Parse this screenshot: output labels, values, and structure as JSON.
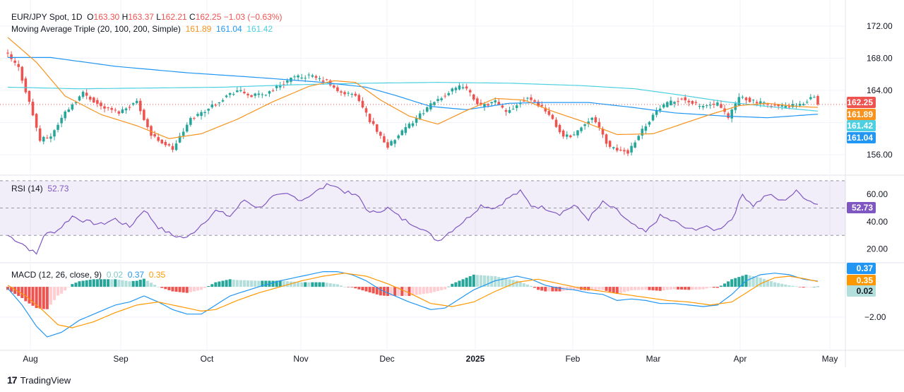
{
  "header": {
    "symbol": "EUR/JPY Spot, 1D",
    "open_label": "O",
    "open": "163.30",
    "high_label": "H",
    "high": "163.37",
    "low_label": "L",
    "low": "162.21",
    "close_label": "C",
    "close": "162.25",
    "change": "−1.03 (−0.63%)"
  },
  "ma_legend": {
    "title": "Moving Average Triple (20, 100, 200, Simple)",
    "ma20": "161.89",
    "ma100": "161.04",
    "ma200": "161.42"
  },
  "rsi_legend": {
    "title": "RSI (14)",
    "value": "52.73"
  },
  "macd_legend": {
    "title": "MACD (12, 26, close, 9)",
    "hist": "0.02",
    "macd": "0.37",
    "signal": "0.35"
  },
  "brand": {
    "name": "TradingView"
  },
  "colors": {
    "up": "#26a69a",
    "down": "#ef5350",
    "ma20": "#f7931e",
    "ma100": "#2196f3",
    "ma200": "#4dd0e1",
    "rsi": "#7e57c2",
    "macd": "#2196f3",
    "signal": "#ff9800",
    "hist_up_strong": "#26a69a",
    "hist_up_weak": "#b2dfdb",
    "hist_dn_strong": "#ef5350",
    "hist_dn_weak": "#ffcdd2"
  },
  "chart_data": [
    {
      "type": "candlestick",
      "title": "EUR/JPY Spot, 1D",
      "x_ticks": [
        "Aug",
        "Sep",
        "Oct",
        "Nov",
        "Dec",
        "2025",
        "Feb",
        "Mar",
        "Apr",
        "May"
      ],
      "y_ticks": [
        156.0,
        160.0,
        164.0,
        168.0,
        172.0
      ],
      "y_tick_labels": [
        "156.00",
        "164.00",
        "168.00",
        "172.00"
      ],
      "ylim": [
        154.5,
        173.5
      ],
      "close_keypoints": [
        {
          "i": 0,
          "v": 168.4
        },
        {
          "i": 3,
          "v": 166.8
        },
        {
          "i": 6,
          "v": 162.5
        },
        {
          "i": 9,
          "v": 157.8
        },
        {
          "i": 12,
          "v": 158.3
        },
        {
          "i": 16,
          "v": 161.3
        },
        {
          "i": 21,
          "v": 163.7
        },
        {
          "i": 26,
          "v": 162.0
        },
        {
          "i": 31,
          "v": 161.3
        },
        {
          "i": 36,
          "v": 162.6
        },
        {
          "i": 40,
          "v": 158.4
        },
        {
          "i": 46,
          "v": 156.7
        },
        {
          "i": 51,
          "v": 160.4
        },
        {
          "i": 56,
          "v": 161.8
        },
        {
          "i": 61,
          "v": 163.3
        },
        {
          "i": 64,
          "v": 164.0
        },
        {
          "i": 68,
          "v": 163.3
        },
        {
          "i": 72,
          "v": 163.6
        },
        {
          "i": 75,
          "v": 164.4
        },
        {
          "i": 79,
          "v": 165.5
        },
        {
          "i": 84,
          "v": 165.8
        },
        {
          "i": 89,
          "v": 165.1
        },
        {
          "i": 92,
          "v": 163.8
        },
        {
          "i": 97,
          "v": 163.4
        },
        {
          "i": 101,
          "v": 160.3
        },
        {
          "i": 106,
          "v": 157.0
        },
        {
          "i": 110,
          "v": 158.8
        },
        {
          "i": 115,
          "v": 161.0
        },
        {
          "i": 120,
          "v": 162.9
        },
        {
          "i": 124,
          "v": 164.0
        },
        {
          "i": 127,
          "v": 164.6
        },
        {
          "i": 132,
          "v": 162.0
        },
        {
          "i": 136,
          "v": 162.6
        },
        {
          "i": 139,
          "v": 161.2
        },
        {
          "i": 145,
          "v": 163.2
        },
        {
          "i": 150,
          "v": 161.6
        },
        {
          "i": 155,
          "v": 158.2
        },
        {
          "i": 158,
          "v": 158.5
        },
        {
          "i": 163,
          "v": 160.8
        },
        {
          "i": 168,
          "v": 156.8
        },
        {
          "i": 173,
          "v": 156.3
        },
        {
          "i": 176,
          "v": 158.5
        },
        {
          "i": 181,
          "v": 161.5
        },
        {
          "i": 184,
          "v": 162.3
        },
        {
          "i": 188,
          "v": 163.0
        },
        {
          "i": 193,
          "v": 162.0
        },
        {
          "i": 198,
          "v": 162.3
        },
        {
          "i": 201,
          "v": 160.5
        },
        {
          "i": 204,
          "v": 163.2
        },
        {
          "i": 210,
          "v": 162.4
        },
        {
          "i": 215,
          "v": 162.0
        },
        {
          "i": 221,
          "v": 162.1
        },
        {
          "i": 224,
          "v": 163.1
        },
        {
          "i": 225,
          "v": 163.3
        },
        {
          "i": 226,
          "v": 162.25
        }
      ],
      "ma20_keypoints": [
        {
          "i": 0,
          "v": 170.6
        },
        {
          "i": 8,
          "v": 167.5
        },
        {
          "i": 16,
          "v": 163.3
        },
        {
          "i": 26,
          "v": 161.0
        },
        {
          "i": 36,
          "v": 159.6
        },
        {
          "i": 45,
          "v": 158.0
        },
        {
          "i": 54,
          "v": 158.6
        },
        {
          "i": 64,
          "v": 160.4
        },
        {
          "i": 74,
          "v": 162.6
        },
        {
          "i": 84,
          "v": 164.5
        },
        {
          "i": 91,
          "v": 165.2
        },
        {
          "i": 97,
          "v": 165.0
        },
        {
          "i": 104,
          "v": 162.8
        },
        {
          "i": 112,
          "v": 160.8
        },
        {
          "i": 120,
          "v": 159.8
        },
        {
          "i": 128,
          "v": 161.5
        },
        {
          "i": 136,
          "v": 163.0
        },
        {
          "i": 144,
          "v": 162.8
        },
        {
          "i": 152,
          "v": 161.4
        },
        {
          "i": 160,
          "v": 160.2
        },
        {
          "i": 170,
          "v": 158.5
        },
        {
          "i": 180,
          "v": 158.6
        },
        {
          "i": 188,
          "v": 159.8
        },
        {
          "i": 196,
          "v": 161.0
        },
        {
          "i": 204,
          "v": 162.1
        },
        {
          "i": 212,
          "v": 162.4
        },
        {
          "i": 220,
          "v": 162.0
        },
        {
          "i": 226,
          "v": 161.89
        }
      ],
      "ma100_keypoints": [
        {
          "i": 0,
          "v": 168.1
        },
        {
          "i": 12,
          "v": 168.1
        },
        {
          "i": 30,
          "v": 167.0
        },
        {
          "i": 50,
          "v": 166.2
        },
        {
          "i": 70,
          "v": 165.6
        },
        {
          "i": 88,
          "v": 165.0
        },
        {
          "i": 100,
          "v": 164.4
        },
        {
          "i": 108,
          "v": 163.4
        },
        {
          "i": 118,
          "v": 162.0
        },
        {
          "i": 128,
          "v": 161.6
        },
        {
          "i": 140,
          "v": 162.4
        },
        {
          "i": 150,
          "v": 162.5
        },
        {
          "i": 162,
          "v": 162.5
        },
        {
          "i": 174,
          "v": 161.9
        },
        {
          "i": 186,
          "v": 161.2
        },
        {
          "i": 200,
          "v": 160.8
        },
        {
          "i": 212,
          "v": 160.6
        },
        {
          "i": 226,
          "v": 161.04
        }
      ],
      "ma200_keypoints": [
        {
          "i": 0,
          "v": 164.4
        },
        {
          "i": 20,
          "v": 164.2
        },
        {
          "i": 40,
          "v": 164.3
        },
        {
          "i": 60,
          "v": 164.4
        },
        {
          "i": 80,
          "v": 164.7
        },
        {
          "i": 100,
          "v": 164.9
        },
        {
          "i": 120,
          "v": 165.0
        },
        {
          "i": 140,
          "v": 164.9
        },
        {
          "i": 160,
          "v": 164.6
        },
        {
          "i": 175,
          "v": 164.2
        },
        {
          "i": 188,
          "v": 163.4
        },
        {
          "i": 200,
          "v": 162.6
        },
        {
          "i": 212,
          "v": 162.0
        },
        {
          "i": 226,
          "v": 161.42
        }
      ],
      "price_labels": [
        {
          "value": "162.25",
          "color": "#ef5350"
        },
        {
          "value": "161.89",
          "color": "#f7931e"
        },
        {
          "value": "161.42",
          "color": "#4dd0e1"
        },
        {
          "value": "161.04",
          "color": "#2196f3"
        }
      ],
      "last_price": 162.25
    },
    {
      "type": "line",
      "title": "RSI (14)",
      "y_ticks": [
        20,
        40,
        60
      ],
      "y_tick_labels": [
        "20.00",
        "40.00",
        "60.00"
      ],
      "ylim": [
        12,
        72
      ],
      "band": [
        30,
        70
      ],
      "midline": 50,
      "keypoints": [
        {
          "i": 0,
          "v": 30
        },
        {
          "i": 4,
          "v": 24
        },
        {
          "i": 8,
          "v": 16
        },
        {
          "i": 10,
          "v": 30
        },
        {
          "i": 14,
          "v": 34
        },
        {
          "i": 18,
          "v": 44
        },
        {
          "i": 22,
          "v": 40
        },
        {
          "i": 26,
          "v": 38
        },
        {
          "i": 30,
          "v": 42
        },
        {
          "i": 34,
          "v": 36
        },
        {
          "i": 38,
          "v": 49
        },
        {
          "i": 42,
          "v": 36
        },
        {
          "i": 46,
          "v": 30
        },
        {
          "i": 50,
          "v": 28
        },
        {
          "i": 54,
          "v": 38
        },
        {
          "i": 58,
          "v": 48
        },
        {
          "i": 62,
          "v": 44
        },
        {
          "i": 66,
          "v": 56
        },
        {
          "i": 70,
          "v": 50
        },
        {
          "i": 74,
          "v": 58
        },
        {
          "i": 78,
          "v": 60
        },
        {
          "i": 82,
          "v": 56
        },
        {
          "i": 86,
          "v": 62
        },
        {
          "i": 90,
          "v": 68
        },
        {
          "i": 94,
          "v": 62
        },
        {
          "i": 98,
          "v": 58
        },
        {
          "i": 101,
          "v": 46
        },
        {
          "i": 106,
          "v": 50
        },
        {
          "i": 110,
          "v": 42
        },
        {
          "i": 115,
          "v": 36
        },
        {
          "i": 120,
          "v": 26
        },
        {
          "i": 124,
          "v": 34
        },
        {
          "i": 128,
          "v": 42
        },
        {
          "i": 132,
          "v": 52
        },
        {
          "i": 136,
          "v": 50
        },
        {
          "i": 140,
          "v": 58
        },
        {
          "i": 143,
          "v": 62
        },
        {
          "i": 146,
          "v": 52
        },
        {
          "i": 150,
          "v": 50
        },
        {
          "i": 154,
          "v": 46
        },
        {
          "i": 158,
          "v": 52
        },
        {
          "i": 162,
          "v": 42
        },
        {
          "i": 166,
          "v": 54
        },
        {
          "i": 170,
          "v": 48
        },
        {
          "i": 174,
          "v": 38
        },
        {
          "i": 178,
          "v": 32
        },
        {
          "i": 182,
          "v": 44
        },
        {
          "i": 186,
          "v": 40
        },
        {
          "i": 190,
          "v": 34
        },
        {
          "i": 194,
          "v": 36
        },
        {
          "i": 198,
          "v": 34
        },
        {
          "i": 202,
          "v": 42
        },
        {
          "i": 205,
          "v": 60
        },
        {
          "i": 208,
          "v": 52
        },
        {
          "i": 212,
          "v": 60
        },
        {
          "i": 216,
          "v": 55
        },
        {
          "i": 220,
          "v": 62
        },
        {
          "i": 224,
          "v": 55
        },
        {
          "i": 226,
          "v": 52.73
        }
      ],
      "last_value_label": "52.73"
    },
    {
      "type": "macd",
      "title": "MACD (12, 26, close, 9)",
      "y_ticks": [
        -2.0
      ],
      "y_tick_labels": [
        "−2.00"
      ],
      "ylim": [
        -4.0,
        1.4
      ],
      "macd_keypoints": [
        {
          "i": 0,
          "v": -0.1
        },
        {
          "i": 4,
          "v": -1.2
        },
        {
          "i": 8,
          "v": -2.6
        },
        {
          "i": 11,
          "v": -3.3
        },
        {
          "i": 15,
          "v": -3.0
        },
        {
          "i": 20,
          "v": -2.2
        },
        {
          "i": 26,
          "v": -1.6
        },
        {
          "i": 30,
          "v": -1.2
        },
        {
          "i": 34,
          "v": -1.0
        },
        {
          "i": 38,
          "v": -0.6
        },
        {
          "i": 42,
          "v": -1.0
        },
        {
          "i": 46,
          "v": -1.5
        },
        {
          "i": 50,
          "v": -1.8
        },
        {
          "i": 54,
          "v": -1.8
        },
        {
          "i": 58,
          "v": -1.2
        },
        {
          "i": 62,
          "v": -0.6
        },
        {
          "i": 66,
          "v": -0.3
        },
        {
          "i": 70,
          "v": 0.0
        },
        {
          "i": 76,
          "v": 0.4
        },
        {
          "i": 82,
          "v": 0.7
        },
        {
          "i": 88,
          "v": 1.0
        },
        {
          "i": 92,
          "v": 1.0
        },
        {
          "i": 96,
          "v": 0.8
        },
        {
          "i": 100,
          "v": 0.4
        },
        {
          "i": 104,
          "v": -0.2
        },
        {
          "i": 108,
          "v": -0.6
        },
        {
          "i": 112,
          "v": -1.0
        },
        {
          "i": 118,
          "v": -1.5
        },
        {
          "i": 122,
          "v": -1.4
        },
        {
          "i": 126,
          "v": -0.8
        },
        {
          "i": 130,
          "v": -0.2
        },
        {
          "i": 136,
          "v": 0.4
        },
        {
          "i": 142,
          "v": 0.7
        },
        {
          "i": 146,
          "v": 0.5
        },
        {
          "i": 150,
          "v": 0.1
        },
        {
          "i": 154,
          "v": -0.1
        },
        {
          "i": 158,
          "v": -0.2
        },
        {
          "i": 162,
          "v": -0.4
        },
        {
          "i": 166,
          "v": -0.5
        },
        {
          "i": 170,
          "v": -0.9
        },
        {
          "i": 174,
          "v": -0.8
        },
        {
          "i": 178,
          "v": -0.9
        },
        {
          "i": 182,
          "v": -1.1
        },
        {
          "i": 186,
          "v": -1.1
        },
        {
          "i": 190,
          "v": -1.2
        },
        {
          "i": 194,
          "v": -1.3
        },
        {
          "i": 198,
          "v": -1.2
        },
        {
          "i": 202,
          "v": -0.5
        },
        {
          "i": 206,
          "v": 0.4
        },
        {
          "i": 210,
          "v": 0.8
        },
        {
          "i": 214,
          "v": 0.9
        },
        {
          "i": 218,
          "v": 0.8
        },
        {
          "i": 222,
          "v": 0.5
        },
        {
          "i": 226,
          "v": 0.37
        }
      ],
      "signal_keypoints": [
        {
          "i": 0,
          "v": 0.1
        },
        {
          "i": 5,
          "v": -0.6
        },
        {
          "i": 10,
          "v": -1.6
        },
        {
          "i": 14,
          "v": -2.5
        },
        {
          "i": 18,
          "v": -2.7
        },
        {
          "i": 24,
          "v": -2.3
        },
        {
          "i": 30,
          "v": -1.7
        },
        {
          "i": 36,
          "v": -1.2
        },
        {
          "i": 42,
          "v": -1.0
        },
        {
          "i": 48,
          "v": -1.3
        },
        {
          "i": 54,
          "v": -1.6
        },
        {
          "i": 58,
          "v": -1.5
        },
        {
          "i": 64,
          "v": -0.9
        },
        {
          "i": 70,
          "v": -0.4
        },
        {
          "i": 76,
          "v": 0.0
        },
        {
          "i": 82,
          "v": 0.4
        },
        {
          "i": 88,
          "v": 0.7
        },
        {
          "i": 94,
          "v": 0.9
        },
        {
          "i": 100,
          "v": 0.7
        },
        {
          "i": 106,
          "v": 0.2
        },
        {
          "i": 112,
          "v": -0.4
        },
        {
          "i": 118,
          "v": -1.1
        },
        {
          "i": 124,
          "v": -1.3
        },
        {
          "i": 130,
          "v": -1.0
        },
        {
          "i": 136,
          "v": -0.3
        },
        {
          "i": 142,
          "v": 0.3
        },
        {
          "i": 148,
          "v": 0.5
        },
        {
          "i": 154,
          "v": 0.2
        },
        {
          "i": 160,
          "v": -0.1
        },
        {
          "i": 166,
          "v": -0.3
        },
        {
          "i": 172,
          "v": -0.5
        },
        {
          "i": 178,
          "v": -0.7
        },
        {
          "i": 184,
          "v": -0.9
        },
        {
          "i": 190,
          "v": -1.0
        },
        {
          "i": 196,
          "v": -1.2
        },
        {
          "i": 202,
          "v": -1.0
        },
        {
          "i": 206,
          "v": -0.4
        },
        {
          "i": 210,
          "v": 0.2
        },
        {
          "i": 214,
          "v": 0.6
        },
        {
          "i": 218,
          "v": 0.7
        },
        {
          "i": 222,
          "v": 0.55
        },
        {
          "i": 226,
          "v": 0.35
        }
      ],
      "price_labels": [
        {
          "value": "0.37",
          "color": "#2196f3"
        },
        {
          "value": "0.35",
          "color": "#ff9800"
        },
        {
          "value": "0.02",
          "color": "#b2dfdb"
        }
      ]
    }
  ]
}
